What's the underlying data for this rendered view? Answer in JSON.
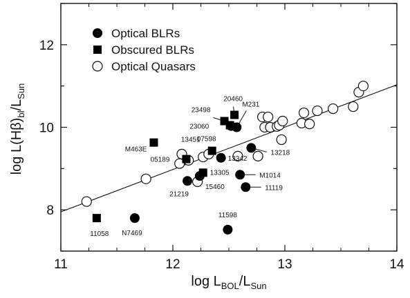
{
  "chart_data": {
    "type": "scatter",
    "xlabel": {
      "main": "log L",
      "sub1": "BOL",
      "mid": "/L",
      "sub2": "Sun"
    },
    "ylabel": {
      "main": "log L(Hβ)",
      "sub1": "bl",
      "mid": "/L",
      "sub2": "Sun"
    },
    "xlim": [
      11,
      14
    ],
    "ylim": [
      7,
      13
    ],
    "xticks": [
      11,
      12,
      13,
      14
    ],
    "yticks": [
      8,
      10,
      12
    ],
    "legend_position": "top-left",
    "series": [
      {
        "name": "Optical BLRs",
        "marker": "filled-circle",
        "points": [
          {
            "x": 11.66,
            "y": 7.8,
            "label": "N7469"
          },
          {
            "x": 12.49,
            "y": 7.52,
            "label": "11598"
          },
          {
            "x": 12.13,
            "y": 8.7,
            "label": "21219"
          },
          {
            "x": 12.24,
            "y": 8.82,
            "label": "15460"
          },
          {
            "x": 12.6,
            "y": 8.85,
            "label": "M1014"
          },
          {
            "x": 12.65,
            "y": 8.55,
            "label": "11119"
          },
          {
            "x": 12.43,
            "y": 9.26,
            "label": "13342"
          },
          {
            "x": 12.7,
            "y": 9.5,
            "label": "13218"
          },
          {
            "x": 12.52,
            "y": 10.03,
            "label": "23060"
          },
          {
            "x": 12.57,
            "y": 10.0,
            "label": ""
          }
        ]
      },
      {
        "name": "Obscured BLRs",
        "marker": "filled-square",
        "points": [
          {
            "x": 11.32,
            "y": 7.8,
            "label": "11058"
          },
          {
            "x": 12.12,
            "y": 9.23,
            "label": "05189"
          },
          {
            "x": 12.27,
            "y": 8.9,
            "label": "13305"
          },
          {
            "x": 12.35,
            "y": 9.43,
            "label": "07598"
          },
          {
            "x": 11.83,
            "y": 9.63,
            "label": "M463E"
          },
          {
            "x": 12.46,
            "y": 10.15,
            "label": "23498"
          },
          {
            "x": 12.55,
            "y": 10.3,
            "label": "20460"
          },
          {
            "x": 12.51,
            "y": 10.05,
            "label": ""
          }
        ]
      },
      {
        "name": "Optical Quasars",
        "marker": "open-circle",
        "points": [
          {
            "x": 11.23,
            "y": 8.2,
            "label": ""
          },
          {
            "x": 11.76,
            "y": 8.75,
            "label": ""
          },
          {
            "x": 12.06,
            "y": 9.12,
            "label": ""
          },
          {
            "x": 12.08,
            "y": 9.35,
            "label": ""
          },
          {
            "x": 12.14,
            "y": 9.2,
            "label": ""
          },
          {
            "x": 12.22,
            "y": 8.68,
            "label": ""
          },
          {
            "x": 12.27,
            "y": 9.28,
            "label": ""
          },
          {
            "x": 12.32,
            "y": 9.35,
            "label": ""
          },
          {
            "x": 12.58,
            "y": 9.3,
            "label": ""
          },
          {
            "x": 12.76,
            "y": 9.3,
            "label": ""
          },
          {
            "x": 12.8,
            "y": 10.25,
            "label": ""
          },
          {
            "x": 12.85,
            "y": 10.25,
            "label": ""
          },
          {
            "x": 12.82,
            "y": 10.0,
            "label": ""
          },
          {
            "x": 12.87,
            "y": 10.0,
            "label": ""
          },
          {
            "x": 12.93,
            "y": 10.02,
            "label": ""
          },
          {
            "x": 12.95,
            "y": 10.05,
            "label": ""
          },
          {
            "x": 12.98,
            "y": 10.15,
            "label": ""
          },
          {
            "x": 12.97,
            "y": 9.7,
            "label": ""
          },
          {
            "x": 13.15,
            "y": 10.1,
            "label": ""
          },
          {
            "x": 13.17,
            "y": 10.35,
            "label": ""
          },
          {
            "x": 13.22,
            "y": 10.08,
            "label": ""
          },
          {
            "x": 13.29,
            "y": 10.4,
            "label": ""
          },
          {
            "x": 13.43,
            "y": 10.45,
            "label": ""
          },
          {
            "x": 13.61,
            "y": 10.5,
            "label": ""
          },
          {
            "x": 13.66,
            "y": 10.85,
            "label": ""
          },
          {
            "x": 13.7,
            "y": 11.0,
            "label": ""
          }
        ]
      }
    ],
    "fit_line": {
      "x": [
        11,
        14
      ],
      "y": [
        7.95,
        11.03
      ]
    }
  }
}
